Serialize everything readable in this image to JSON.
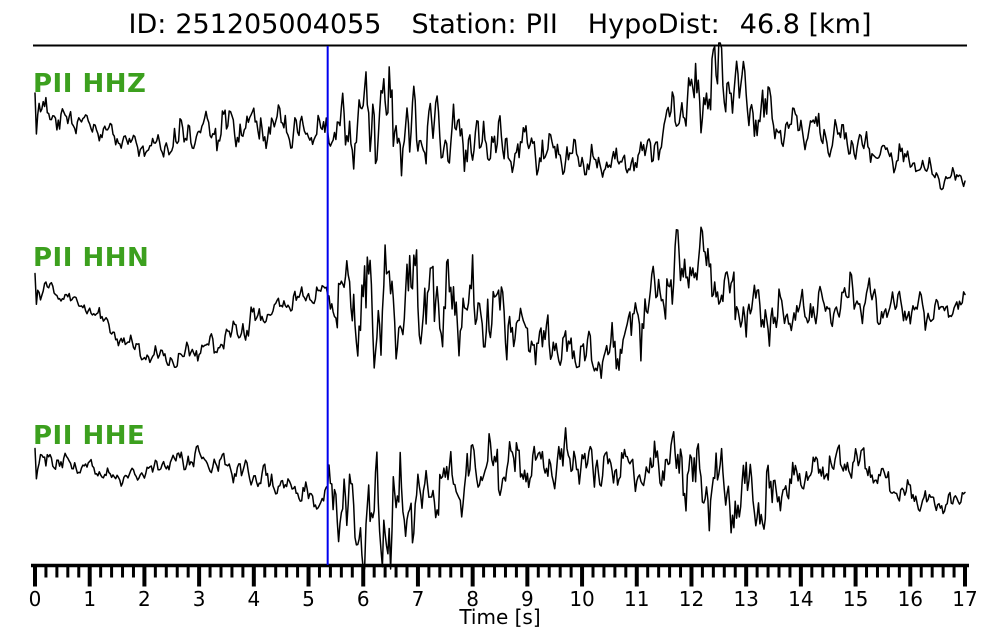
{
  "header": {
    "id_label": "ID:",
    "id_value": "251205004055",
    "station_label": "Station:",
    "station_value": "PII",
    "hypodist_label": "HypoDist:",
    "hypodist_value": "46.8 [km]"
  },
  "figure": {
    "colors": {
      "background": "#ffffff",
      "trace": "#000000",
      "pick_line": "#0000ee",
      "channel_label": "#3ca01e",
      "axis": "#000000"
    }
  },
  "chart_data": {
    "type": "line",
    "kind": "three-component seismogram",
    "title": "ID: 251205004055  Station: PII  HypoDist: 46.8 [km]",
    "xlabel": "Time [s]",
    "x_range": [
      0,
      17
    ],
    "x_major_tick_step_s": 1,
    "x_minor_tick_step_s": 0.2,
    "x_tick_labels": [
      "0",
      "1",
      "2",
      "3",
      "4",
      "5",
      "6",
      "7",
      "8",
      "9",
      "10",
      "11",
      "12",
      "13",
      "14",
      "15",
      "16",
      "17"
    ],
    "grid": false,
    "legend_position": "none",
    "pick_time_s": 5.35,
    "envelope_units": "t seconds; baseline offset px (positive down) from trace centerline; amp = half peak-to-peak px (estimated from pixels, no y-axis scale shown)",
    "traces": [
      {
        "label": "PII HHZ",
        "station": "PII",
        "channel": "HHZ",
        "envelope": [
          [
            0,
            -15,
            20
          ],
          [
            0.5,
            -12,
            16
          ],
          [
            1,
            -5,
            12
          ],
          [
            1.5,
            8,
            10
          ],
          [
            2,
            18,
            10
          ],
          [
            2.5,
            15,
            14
          ],
          [
            2.9,
            0,
            28
          ],
          [
            3.3,
            -2,
            22
          ],
          [
            4,
            -5,
            20
          ],
          [
            4.6,
            -2,
            18
          ],
          [
            5.1,
            5,
            14
          ],
          [
            5.4,
            0,
            30
          ],
          [
            5.8,
            -5,
            45
          ],
          [
            6.3,
            -10,
            50
          ],
          [
            6.8,
            -5,
            48
          ],
          [
            7.3,
            5,
            35
          ],
          [
            7.8,
            10,
            28
          ],
          [
            8.3,
            15,
            26
          ],
          [
            8.8,
            18,
            24
          ],
          [
            9.3,
            20,
            22
          ],
          [
            9.8,
            28,
            18
          ],
          [
            10.3,
            33,
            15
          ],
          [
            10.8,
            35,
            14
          ],
          [
            11.2,
            20,
            20
          ],
          [
            11.6,
            -10,
            30
          ],
          [
            12,
            -35,
            38
          ],
          [
            12.45,
            -50,
            42
          ],
          [
            12.9,
            -35,
            35
          ],
          [
            13.4,
            -15,
            28
          ],
          [
            14,
            -2,
            22
          ],
          [
            14.6,
            8,
            20
          ],
          [
            15.2,
            18,
            18
          ],
          [
            15.8,
            28,
            15
          ],
          [
            16.3,
            40,
            12
          ],
          [
            16.7,
            50,
            10
          ],
          [
            17,
            45,
            10
          ]
        ]
      },
      {
        "label": "PII HHN",
        "station": "PII",
        "channel": "HHN",
        "envelope": [
          [
            0,
            -10,
            15
          ],
          [
            0.5,
            -5,
            10
          ],
          [
            1,
            10,
            10
          ],
          [
            1.5,
            35,
            8
          ],
          [
            2,
            55,
            10
          ],
          [
            2.5,
            58,
            10
          ],
          [
            3,
            50,
            12
          ],
          [
            3.5,
            38,
            15
          ],
          [
            4,
            20,
            18
          ],
          [
            4.5,
            5,
            15
          ],
          [
            5,
            -5,
            12
          ],
          [
            5.35,
            -10,
            12
          ],
          [
            5.5,
            0,
            40
          ],
          [
            6,
            0,
            55
          ],
          [
            6.4,
            5,
            65
          ],
          [
            6.9,
            0,
            60
          ],
          [
            7.4,
            0,
            50
          ],
          [
            7.9,
            5,
            45
          ],
          [
            8.4,
            10,
            40
          ],
          [
            9,
            30,
            30
          ],
          [
            9.6,
            50,
            25
          ],
          [
            10.2,
            60,
            25
          ],
          [
            10.7,
            45,
            30
          ],
          [
            11.2,
            10,
            35
          ],
          [
            11.7,
            -30,
            40
          ],
          [
            12.1,
            -45,
            32
          ],
          [
            12.5,
            -20,
            35
          ],
          [
            13,
            10,
            35
          ],
          [
            13.5,
            20,
            25
          ],
          [
            14,
            10,
            22
          ],
          [
            14.5,
            5,
            22
          ],
          [
            15,
            0,
            25
          ],
          [
            15.5,
            5,
            20
          ],
          [
            16,
            10,
            18
          ],
          [
            16.5,
            15,
            15
          ],
          [
            17,
            0,
            12
          ]
        ]
      },
      {
        "label": "PII HHE",
        "station": "PII",
        "channel": "HHE",
        "envelope": [
          [
            0,
            -15,
            15
          ],
          [
            0.5,
            -20,
            10
          ],
          [
            1,
            -12,
            8
          ],
          [
            1.5,
            -2,
            8
          ],
          [
            2,
            -5,
            8
          ],
          [
            2.4,
            -18,
            10
          ],
          [
            2.9,
            -22,
            12
          ],
          [
            3.4,
            -15,
            12
          ],
          [
            3.9,
            -5,
            15
          ],
          [
            4.4,
            2,
            12
          ],
          [
            4.8,
            10,
            12
          ],
          [
            5.2,
            23,
            10
          ],
          [
            5.45,
            10,
            30
          ],
          [
            5.7,
            30,
            55
          ],
          [
            6,
            40,
            60
          ],
          [
            6.4,
            35,
            55
          ],
          [
            6.8,
            25,
            45
          ],
          [
            7.2,
            15,
            40
          ],
          [
            7.6,
            5,
            35
          ],
          [
            8,
            -8,
            30
          ],
          [
            8.4,
            -15,
            28
          ],
          [
            9,
            -13,
            25
          ],
          [
            9.5,
            -15,
            25
          ],
          [
            9.9,
            -20,
            30
          ],
          [
            10.4,
            -12,
            22
          ],
          [
            11,
            -10,
            25
          ],
          [
            11.5,
            -12,
            28
          ],
          [
            11.8,
            -15,
            40
          ],
          [
            12.2,
            0,
            40
          ],
          [
            12.7,
            15,
            45
          ],
          [
            13.3,
            25,
            35
          ],
          [
            13.7,
            10,
            25
          ],
          [
            14.2,
            -10,
            20
          ],
          [
            14.7,
            -18,
            18
          ],
          [
            15.2,
            -15,
            18
          ],
          [
            15.7,
            5,
            15
          ],
          [
            16.2,
            20,
            12
          ],
          [
            16.7,
            25,
            10
          ],
          [
            17,
            10,
            8
          ]
        ]
      }
    ]
  }
}
